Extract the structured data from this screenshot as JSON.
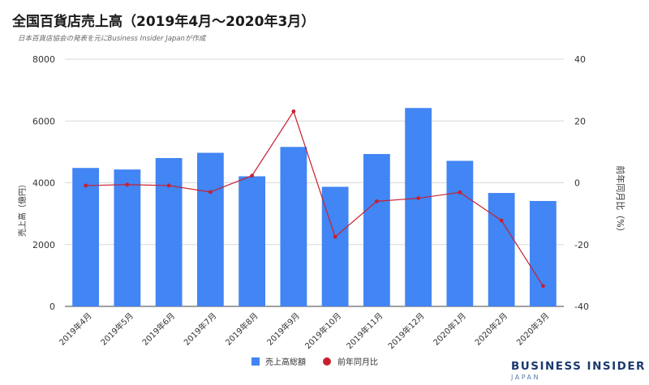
{
  "title": "全国百貨店売上高（2019年4月～2020年3月）",
  "subtitle": "日本百貨店協会の発表を元にBusiness Insider Japanが作成",
  "brand": {
    "main": "BUSINESS INSIDER",
    "sub": "JAPAN"
  },
  "colors": {
    "bar": "#4285f4",
    "line": "#c8202f",
    "grid": "#d9d9d9"
  },
  "chart_data": {
    "type": "bar",
    "categories": [
      "2019年4月",
      "2019年5月",
      "2019年6月",
      "2019年7月",
      "2019年8月",
      "2019年9月",
      "2019年10月",
      "2019年11月",
      "2019年12月",
      "2020年1月",
      "2020年2月",
      "2020年3月"
    ],
    "series": [
      {
        "name": "売上高総額",
        "type": "bar",
        "axis": "left",
        "values": [
          4480,
          4430,
          4800,
          4970,
          4210,
          5160,
          3870,
          4930,
          6420,
          4710,
          3670,
          3410
        ]
      },
      {
        "name": "前年同月比",
        "type": "line",
        "axis": "right",
        "values": [
          -0.9,
          -0.6,
          -0.9,
          -3.0,
          2.3,
          23.1,
          -17.5,
          -6.0,
          -5.0,
          -3.1,
          -12.2,
          -33.4
        ]
      }
    ],
    "ylabel_left": "売上高（億円）",
    "ylabel_right": "前年同月比（%）",
    "ylim_left": [
      0,
      8000
    ],
    "ylim_right": [
      -40,
      40
    ],
    "yticks_left": [
      "0",
      "2000",
      "4000",
      "6000",
      "8000"
    ],
    "yticks_right": [
      "-40",
      "-20",
      "0",
      "20",
      "40"
    ],
    "grid": true,
    "legend_position": "bottom"
  }
}
